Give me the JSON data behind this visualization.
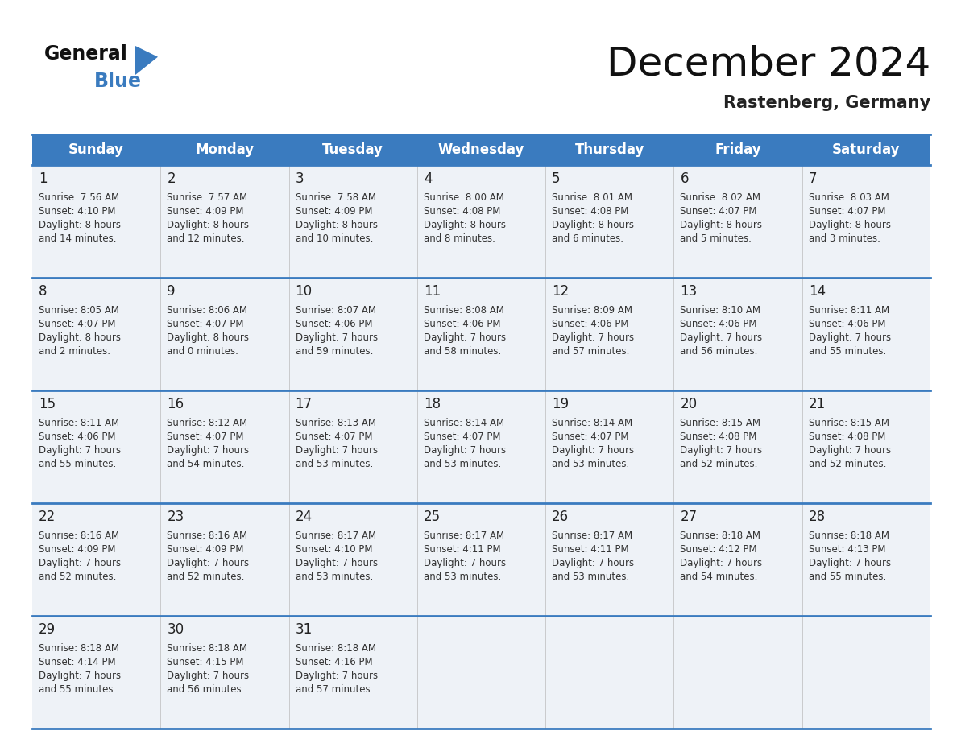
{
  "title": "December 2024",
  "subtitle": "Rastenberg, Germany",
  "header_bg_color": "#3a7bbf",
  "header_text_color": "#ffffff",
  "cell_bg_color": "#eef2f7",
  "border_color": "#3a7bbf",
  "text_color": "#222222",
  "subtext_color": "#333333",
  "day_headers": [
    "Sunday",
    "Monday",
    "Tuesday",
    "Wednesday",
    "Thursday",
    "Friday",
    "Saturday"
  ],
  "calendar_data": [
    [
      {
        "day": 1,
        "sunrise": "7:56 AM",
        "sunset": "4:10 PM",
        "daylight_hours": 8,
        "daylight_minutes": 14
      },
      {
        "day": 2,
        "sunrise": "7:57 AM",
        "sunset": "4:09 PM",
        "daylight_hours": 8,
        "daylight_minutes": 12
      },
      {
        "day": 3,
        "sunrise": "7:58 AM",
        "sunset": "4:09 PM",
        "daylight_hours": 8,
        "daylight_minutes": 10
      },
      {
        "day": 4,
        "sunrise": "8:00 AM",
        "sunset": "4:08 PM",
        "daylight_hours": 8,
        "daylight_minutes": 8
      },
      {
        "day": 5,
        "sunrise": "8:01 AM",
        "sunset": "4:08 PM",
        "daylight_hours": 8,
        "daylight_minutes": 6
      },
      {
        "day": 6,
        "sunrise": "8:02 AM",
        "sunset": "4:07 PM",
        "daylight_hours": 8,
        "daylight_minutes": 5
      },
      {
        "day": 7,
        "sunrise": "8:03 AM",
        "sunset": "4:07 PM",
        "daylight_hours": 8,
        "daylight_minutes": 3
      }
    ],
    [
      {
        "day": 8,
        "sunrise": "8:05 AM",
        "sunset": "4:07 PM",
        "daylight_hours": 8,
        "daylight_minutes": 2
      },
      {
        "day": 9,
        "sunrise": "8:06 AM",
        "sunset": "4:07 PM",
        "daylight_hours": 8,
        "daylight_minutes": 0
      },
      {
        "day": 10,
        "sunrise": "8:07 AM",
        "sunset": "4:06 PM",
        "daylight_hours": 7,
        "daylight_minutes": 59
      },
      {
        "day": 11,
        "sunrise": "8:08 AM",
        "sunset": "4:06 PM",
        "daylight_hours": 7,
        "daylight_minutes": 58
      },
      {
        "day": 12,
        "sunrise": "8:09 AM",
        "sunset": "4:06 PM",
        "daylight_hours": 7,
        "daylight_minutes": 57
      },
      {
        "day": 13,
        "sunrise": "8:10 AM",
        "sunset": "4:06 PM",
        "daylight_hours": 7,
        "daylight_minutes": 56
      },
      {
        "day": 14,
        "sunrise": "8:11 AM",
        "sunset": "4:06 PM",
        "daylight_hours": 7,
        "daylight_minutes": 55
      }
    ],
    [
      {
        "day": 15,
        "sunrise": "8:11 AM",
        "sunset": "4:06 PM",
        "daylight_hours": 7,
        "daylight_minutes": 55
      },
      {
        "day": 16,
        "sunrise": "8:12 AM",
        "sunset": "4:07 PM",
        "daylight_hours": 7,
        "daylight_minutes": 54
      },
      {
        "day": 17,
        "sunrise": "8:13 AM",
        "sunset": "4:07 PM",
        "daylight_hours": 7,
        "daylight_minutes": 53
      },
      {
        "day": 18,
        "sunrise": "8:14 AM",
        "sunset": "4:07 PM",
        "daylight_hours": 7,
        "daylight_minutes": 53
      },
      {
        "day": 19,
        "sunrise": "8:14 AM",
        "sunset": "4:07 PM",
        "daylight_hours": 7,
        "daylight_minutes": 53
      },
      {
        "day": 20,
        "sunrise": "8:15 AM",
        "sunset": "4:08 PM",
        "daylight_hours": 7,
        "daylight_minutes": 52
      },
      {
        "day": 21,
        "sunrise": "8:15 AM",
        "sunset": "4:08 PM",
        "daylight_hours": 7,
        "daylight_minutes": 52
      }
    ],
    [
      {
        "day": 22,
        "sunrise": "8:16 AM",
        "sunset": "4:09 PM",
        "daylight_hours": 7,
        "daylight_minutes": 52
      },
      {
        "day": 23,
        "sunrise": "8:16 AM",
        "sunset": "4:09 PM",
        "daylight_hours": 7,
        "daylight_minutes": 52
      },
      {
        "day": 24,
        "sunrise": "8:17 AM",
        "sunset": "4:10 PM",
        "daylight_hours": 7,
        "daylight_minutes": 53
      },
      {
        "day": 25,
        "sunrise": "8:17 AM",
        "sunset": "4:11 PM",
        "daylight_hours": 7,
        "daylight_minutes": 53
      },
      {
        "day": 26,
        "sunrise": "8:17 AM",
        "sunset": "4:11 PM",
        "daylight_hours": 7,
        "daylight_minutes": 53
      },
      {
        "day": 27,
        "sunrise": "8:18 AM",
        "sunset": "4:12 PM",
        "daylight_hours": 7,
        "daylight_minutes": 54
      },
      {
        "day": 28,
        "sunrise": "8:18 AM",
        "sunset": "4:13 PM",
        "daylight_hours": 7,
        "daylight_minutes": 55
      }
    ],
    [
      {
        "day": 29,
        "sunrise": "8:18 AM",
        "sunset": "4:14 PM",
        "daylight_hours": 7,
        "daylight_minutes": 55
      },
      {
        "day": 30,
        "sunrise": "8:18 AM",
        "sunset": "4:15 PM",
        "daylight_hours": 7,
        "daylight_minutes": 56
      },
      {
        "day": 31,
        "sunrise": "8:18 AM",
        "sunset": "4:16 PM",
        "daylight_hours": 7,
        "daylight_minutes": 57
      },
      null,
      null,
      null,
      null
    ]
  ],
  "logo_general_color": "#111111",
  "logo_blue_color": "#3a7bbf",
  "logo_triangle_color": "#3a7bbf",
  "title_fontsize": 36,
  "subtitle_fontsize": 15,
  "header_fontsize": 12,
  "day_number_fontsize": 12,
  "cell_text_fontsize": 8.5
}
